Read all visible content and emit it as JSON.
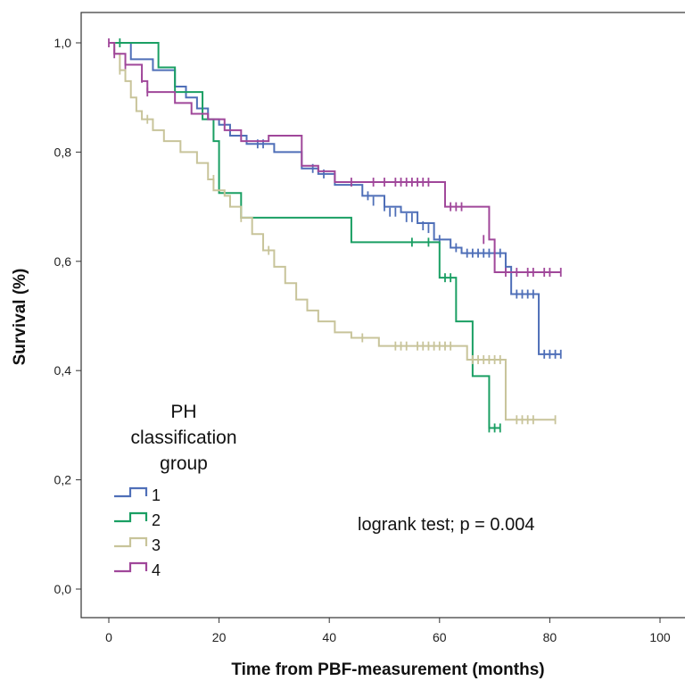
{
  "chart_data": {
    "type": "line",
    "subtype": "kaplan-meier step curves with censor marks",
    "xlabel": "Time from PBF-measurement (months)",
    "ylabel": "Survival (%)",
    "xlim": [
      -5,
      103
    ],
    "ylim": [
      -0.05,
      1.06
    ],
    "x_ticks": [
      0,
      20,
      40,
      60,
      80,
      100
    ],
    "y_ticks": [
      0.0,
      0.2,
      0.4,
      0.6,
      0.8,
      1.0
    ],
    "x_tick_labels": [
      "0",
      "20",
      "40",
      "60",
      "80",
      "100"
    ],
    "y_tick_labels": [
      "0,0",
      "0,2",
      "0,4",
      "0,6",
      "0,8",
      "1,0"
    ],
    "grid": false,
    "legend": {
      "title_lines": [
        "PH",
        "classification",
        "group"
      ],
      "placement": "bottom-left"
    },
    "annotation": "logrank test; p = 0.004",
    "series": [
      {
        "name": "1",
        "color": "#4f6fb8",
        "steps": [
          [
            0,
            1.0
          ],
          [
            4,
            0.97
          ],
          [
            8,
            0.95
          ],
          [
            12,
            0.92
          ],
          [
            14,
            0.9
          ],
          [
            16,
            0.88
          ],
          [
            18,
            0.86
          ],
          [
            20,
            0.85
          ],
          [
            22,
            0.83
          ],
          [
            25,
            0.815
          ],
          [
            30,
            0.8
          ],
          [
            35,
            0.77
          ],
          [
            38,
            0.76
          ],
          [
            41,
            0.74
          ],
          [
            46,
            0.72
          ],
          [
            50,
            0.7
          ],
          [
            53,
            0.69
          ],
          [
            56,
            0.67
          ],
          [
            59,
            0.64
          ],
          [
            62,
            0.625
          ],
          [
            64,
            0.615
          ],
          [
            72,
            0.59
          ],
          [
            73,
            0.54
          ],
          [
            78,
            0.43
          ],
          [
            82,
            0.43
          ]
        ],
        "censored": [
          [
            27,
            0.815
          ],
          [
            28,
            0.815
          ],
          [
            37,
            0.77
          ],
          [
            39,
            0.76
          ],
          [
            47,
            0.72
          ],
          [
            48,
            0.71
          ],
          [
            50,
            0.7
          ],
          [
            51,
            0.69
          ],
          [
            52,
            0.69
          ],
          [
            54,
            0.68
          ],
          [
            55,
            0.68
          ],
          [
            57,
            0.665
          ],
          [
            58,
            0.66
          ],
          [
            60,
            0.64
          ],
          [
            63,
            0.625
          ],
          [
            65,
            0.615
          ],
          [
            66,
            0.615
          ],
          [
            67,
            0.615
          ],
          [
            68,
            0.615
          ],
          [
            69,
            0.615
          ],
          [
            70,
            0.615
          ],
          [
            71,
            0.615
          ],
          [
            72,
            0.59
          ],
          [
            74,
            0.54
          ],
          [
            75,
            0.54
          ],
          [
            76,
            0.54
          ],
          [
            77,
            0.54
          ],
          [
            79,
            0.43
          ],
          [
            80,
            0.43
          ],
          [
            81,
            0.43
          ],
          [
            82,
            0.43
          ]
        ]
      },
      {
        "name": "2",
        "color": "#1a9f63",
        "steps": [
          [
            0,
            1.0
          ],
          [
            9,
            0.955
          ],
          [
            12,
            0.91
          ],
          [
            17,
            0.86
          ],
          [
            19,
            0.82
          ],
          [
            20,
            0.725
          ],
          [
            24,
            0.68
          ],
          [
            44,
            0.635
          ],
          [
            60,
            0.57
          ],
          [
            63,
            0.49
          ],
          [
            66,
            0.39
          ],
          [
            69,
            0.295
          ],
          [
            71,
            0.295
          ]
        ],
        "censored": [
          [
            2,
            1.0
          ],
          [
            55,
            0.635
          ],
          [
            58,
            0.635
          ],
          [
            61,
            0.57
          ],
          [
            62,
            0.57
          ],
          [
            69,
            0.295
          ],
          [
            70,
            0.295
          ],
          [
            71,
            0.295
          ]
        ]
      },
      {
        "name": "3",
        "color": "#c8c49a",
        "steps": [
          [
            0,
            1.0
          ],
          [
            1,
            0.98
          ],
          [
            2,
            0.95
          ],
          [
            3,
            0.93
          ],
          [
            4,
            0.9
          ],
          [
            5,
            0.875
          ],
          [
            6,
            0.86
          ],
          [
            8,
            0.84
          ],
          [
            10,
            0.82
          ],
          [
            13,
            0.8
          ],
          [
            16,
            0.78
          ],
          [
            18,
            0.75
          ],
          [
            19,
            0.73
          ],
          [
            21,
            0.72
          ],
          [
            22,
            0.7
          ],
          [
            24,
            0.68
          ],
          [
            26,
            0.65
          ],
          [
            28,
            0.62
          ],
          [
            30,
            0.59
          ],
          [
            32,
            0.56
          ],
          [
            34,
            0.53
          ],
          [
            36,
            0.51
          ],
          [
            38,
            0.49
          ],
          [
            41,
            0.47
          ],
          [
            44,
            0.46
          ],
          [
            49,
            0.445
          ],
          [
            65,
            0.42
          ],
          [
            72,
            0.31
          ],
          [
            81,
            0.31
          ]
        ],
        "censored": [
          [
            2,
            0.95
          ],
          [
            7,
            0.86
          ],
          [
            19,
            0.75
          ],
          [
            24,
            0.68
          ],
          [
            29,
            0.62
          ],
          [
            46,
            0.46
          ],
          [
            52,
            0.445
          ],
          [
            53,
            0.445
          ],
          [
            54,
            0.445
          ],
          [
            56,
            0.445
          ],
          [
            57,
            0.445
          ],
          [
            58,
            0.445
          ],
          [
            59,
            0.445
          ],
          [
            60,
            0.445
          ],
          [
            61,
            0.445
          ],
          [
            62,
            0.445
          ],
          [
            66,
            0.42
          ],
          [
            67,
            0.42
          ],
          [
            68,
            0.42
          ],
          [
            69,
            0.42
          ],
          [
            70,
            0.42
          ],
          [
            71,
            0.42
          ],
          [
            74,
            0.31
          ],
          [
            75,
            0.31
          ],
          [
            76,
            0.31
          ],
          [
            77,
            0.31
          ],
          [
            81,
            0.31
          ]
        ]
      },
      {
        "name": "4",
        "color": "#a0479a",
        "steps": [
          [
            0,
            1.0
          ],
          [
            1,
            0.98
          ],
          [
            3,
            0.96
          ],
          [
            6,
            0.93
          ],
          [
            7,
            0.91
          ],
          [
            12,
            0.89
          ],
          [
            15,
            0.87
          ],
          [
            18,
            0.86
          ],
          [
            21,
            0.84
          ],
          [
            24,
            0.82
          ],
          [
            29,
            0.83
          ],
          [
            35,
            0.775
          ],
          [
            38,
            0.765
          ],
          [
            41,
            0.745
          ],
          [
            61,
            0.7
          ],
          [
            69,
            0.64
          ],
          [
            70,
            0.58
          ],
          [
            82,
            0.58
          ]
        ],
        "censored": [
          [
            0,
            1.0
          ],
          [
            1,
            0.98
          ],
          [
            3,
            0.96
          ],
          [
            6,
            0.935
          ],
          [
            7,
            0.91
          ],
          [
            44,
            0.745
          ],
          [
            48,
            0.745
          ],
          [
            50,
            0.745
          ],
          [
            52,
            0.745
          ],
          [
            53,
            0.745
          ],
          [
            54,
            0.745
          ],
          [
            55,
            0.745
          ],
          [
            56,
            0.745
          ],
          [
            57,
            0.745
          ],
          [
            58,
            0.745
          ],
          [
            62,
            0.7
          ],
          [
            63,
            0.7
          ],
          [
            64,
            0.7
          ],
          [
            68,
            0.64
          ],
          [
            72,
            0.58
          ],
          [
            74,
            0.58
          ],
          [
            76,
            0.58
          ],
          [
            77,
            0.58
          ],
          [
            79,
            0.58
          ],
          [
            80,
            0.58
          ],
          [
            82,
            0.58
          ]
        ]
      }
    ]
  }
}
